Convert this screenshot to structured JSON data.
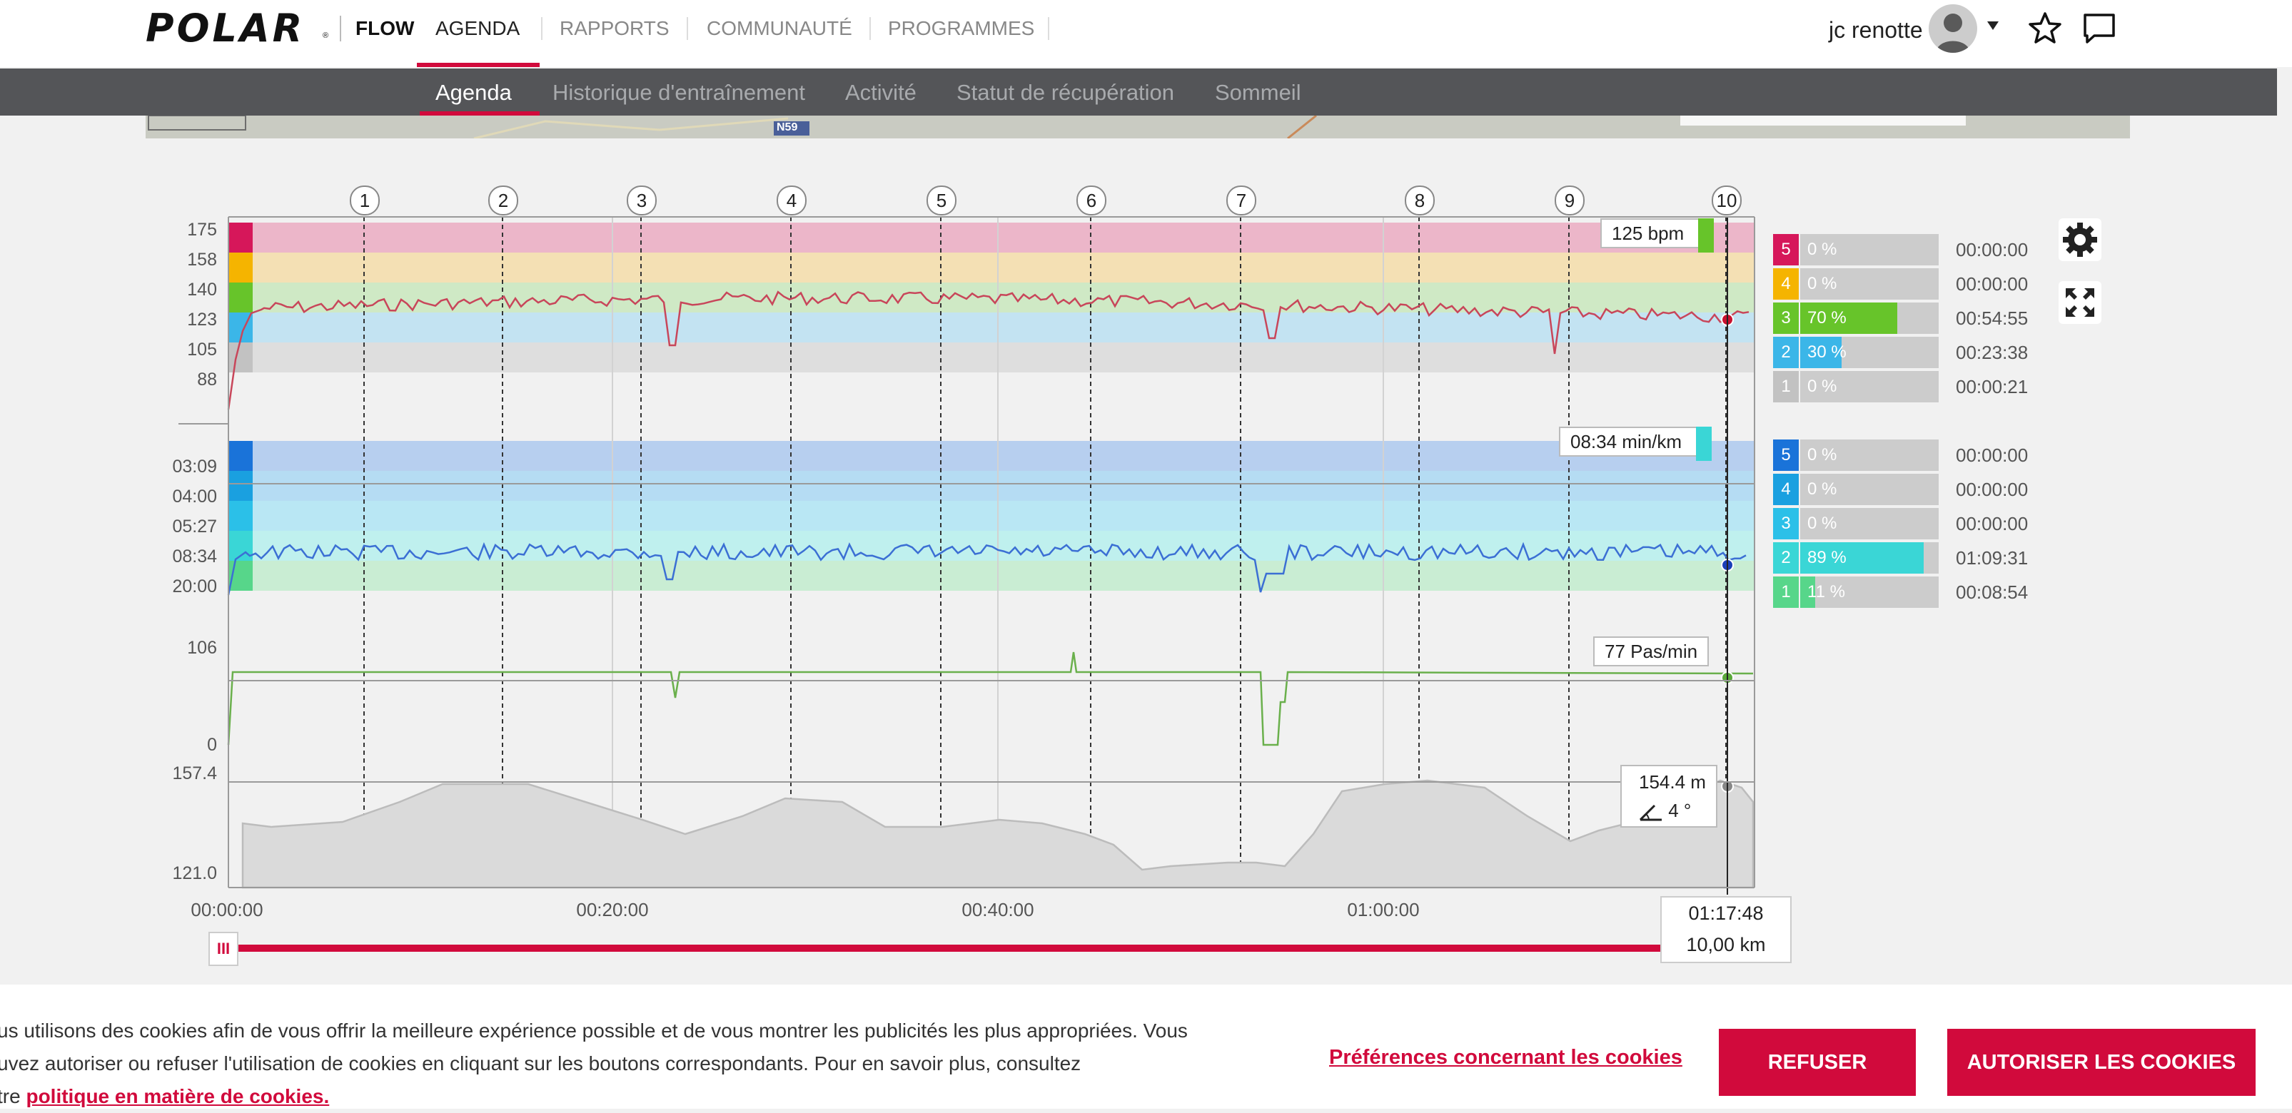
{
  "header": {
    "brand": "POLAR",
    "brand_mark": "®",
    "nav": [
      "FLOW",
      "AGENDA",
      "RAPPORTS",
      "COMMUNAUTÉ",
      "PROGRAMMES"
    ],
    "active_nav": "AGENDA",
    "user_name": "jc renotte",
    "icons": [
      "avatar",
      "dropdown-caret-icon",
      "star-icon",
      "chat-icon"
    ]
  },
  "subnav": {
    "items": [
      "Agenda",
      "Historique d'entraînement",
      "Activité",
      "Statut de récupération",
      "Sommeil"
    ],
    "active": "Agenda"
  },
  "map": {
    "road_label": "N59"
  },
  "chart": {
    "laps": [
      "1",
      "2",
      "3",
      "4",
      "5",
      "6",
      "7",
      "8",
      "9",
      "10"
    ],
    "x_ticks": [
      "00:00:00",
      "00:20:00",
      "00:40:00",
      "01:00:00"
    ],
    "heart_rate": {
      "ticks": [
        "175",
        "158",
        "140",
        "123",
        "105",
        "88"
      ],
      "tooltip": "125 bpm",
      "zones": [
        {
          "num": "5",
          "pct_label": "0 %",
          "pct": 0,
          "time": "00:00:00",
          "color": "#d6175a"
        },
        {
          "num": "4",
          "pct_label": "0 %",
          "pct": 0,
          "time": "00:00:00",
          "color": "#f5b400"
        },
        {
          "num": "3",
          "pct_label": "70 %",
          "pct": 70,
          "time": "00:54:55",
          "color": "#67c42a"
        },
        {
          "num": "2",
          "pct_label": "30 %",
          "pct": 30,
          "time": "00:23:38",
          "color": "#3bb6e8"
        },
        {
          "num": "1",
          "pct_label": "0 %",
          "pct": 0,
          "time": "00:00:21",
          "color": "#c2c2c2"
        }
      ]
    },
    "pace": {
      "ticks": [
        "03:09",
        "04:00",
        "05:27",
        "08:34",
        "20:00"
      ],
      "tooltip": "08:34 min/km",
      "zones": [
        {
          "num": "5",
          "pct_label": "0 %",
          "pct": 0,
          "time": "00:00:00",
          "color": "#1a73d9"
        },
        {
          "num": "4",
          "pct_label": "0 %",
          "pct": 0,
          "time": "00:00:00",
          "color": "#1aa0e0"
        },
        {
          "num": "3",
          "pct_label": "0 %",
          "pct": 0,
          "time": "00:00:00",
          "color": "#2bc0e8"
        },
        {
          "num": "2",
          "pct_label": "89 %",
          "pct": 89,
          "time": "01:09:31",
          "color": "#3ad6d6"
        },
        {
          "num": "1",
          "pct_label": "11 %",
          "pct": 11,
          "time": "00:08:54",
          "color": "#57d68a"
        }
      ]
    },
    "cadence": {
      "ticks": [
        "106",
        "0"
      ],
      "tooltip": "77 Pas/min"
    },
    "altitude": {
      "ticks": [
        "157.4",
        "121.0"
      ],
      "tooltip_alt": "154.4 m",
      "tooltip_slope": "4 °"
    },
    "cursor": {
      "time": "01:17:48",
      "distance": "10,00 km"
    },
    "colors": {
      "hr_line": "#c8465a",
      "pace_line": "#3b6fd4",
      "cadence_line": "#6ab04c",
      "altitude_fill": "#dadada",
      "brand_red": "#d10a3c"
    }
  },
  "cookie": {
    "line1": "us utilisons des cookies afin de vous offrir la meilleure expérience possible et de vous montrer les publicités les plus appropriées. Vous",
    "line2": "uvez autoriser ou refuser l'utilisation de cookies en cliquant sur les boutons correspondants. Pour en savoir plus, consultez",
    "line3_prefix": "tre ",
    "policy_link": "politique en matière de cookies.",
    "prefs_link": "Préférences concernant les cookies",
    "refuse_button": "REFUSER",
    "accept_button": "AUTORISER LES COOKIES"
  }
}
